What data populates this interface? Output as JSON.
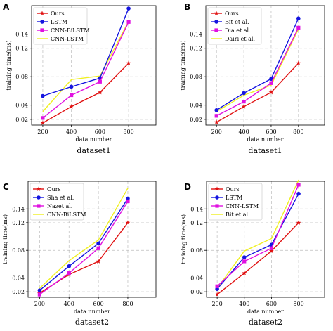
{
  "chart_data": [
    {
      "type": "line",
      "panel_label": "A",
      "xlabel": "data number",
      "ylabel": "training time(ms)",
      "caption": "dataset1",
      "x": [
        200,
        400,
        600,
        800
      ],
      "yticks": [
        0.02,
        0.04,
        0.08,
        0.12,
        0.14
      ],
      "ylim": [
        0.012,
        0.18
      ],
      "grid": true,
      "legend_position": "top-left",
      "series": [
        {
          "name": "Ours",
          "color": "#e01010",
          "marker": "star",
          "values": [
            0.015,
            0.038,
            0.058,
            0.099
          ]
        },
        {
          "name": "LSTM",
          "color": "#1515e0",
          "marker": "circle",
          "values": [
            0.053,
            0.066,
            0.078,
            0.176
          ]
        },
        {
          "name": "CNN-BiLSTM",
          "color": "#e010e0",
          "marker": "square",
          "values": [
            0.022,
            0.054,
            0.073,
            0.157
          ]
        },
        {
          "name": "CNN-LSTM",
          "color": "#f0f020",
          "marker": "none",
          "values": [
            0.031,
            0.076,
            0.081,
            0.158
          ]
        }
      ]
    },
    {
      "type": "line",
      "panel_label": "B",
      "xlabel": "data number",
      "ylabel": "training time(ms)",
      "caption": "dataset1",
      "x": [
        200,
        400,
        600,
        800
      ],
      "yticks": [
        0.02,
        0.04,
        0.08,
        0.12,
        0.14
      ],
      "ylim": [
        0.012,
        0.18
      ],
      "grid": true,
      "legend_position": "top-left",
      "series": [
        {
          "name": "Ours",
          "color": "#e01010",
          "marker": "star",
          "values": [
            0.016,
            0.038,
            0.058,
            0.099
          ]
        },
        {
          "name": "Bit et al.",
          "color": "#1515e0",
          "marker": "circle",
          "values": [
            0.033,
            0.057,
            0.077,
            0.162
          ]
        },
        {
          "name": "Dia et al.",
          "color": "#e010e0",
          "marker": "square",
          "values": [
            0.025,
            0.045,
            0.071,
            0.149
          ]
        },
        {
          "name": "Dairi et al.",
          "color": "#f0f020",
          "marker": "none",
          "values": [
            0.031,
            0.054,
            0.068,
            0.147
          ]
        }
      ]
    },
    {
      "type": "line",
      "panel_label": "C",
      "xlabel": "data number",
      "ylabel": "training time(ms)",
      "caption": "dataset2",
      "x": [
        200,
        400,
        600,
        800
      ],
      "yticks": [
        0.02,
        0.04,
        0.08,
        0.12,
        0.14
      ],
      "ylim": [
        0.012,
        0.18
      ],
      "grid": true,
      "legend_position": "top-left",
      "series": [
        {
          "name": "Ours",
          "color": "#e01010",
          "marker": "star",
          "values": [
            0.018,
            0.045,
            0.064,
            0.12
          ]
        },
        {
          "name": "Sha et al.",
          "color": "#1515e0",
          "marker": "circle",
          "values": [
            0.022,
            0.057,
            0.09,
            0.155
          ]
        },
        {
          "name": "Nazet al.",
          "color": "#e010e0",
          "marker": "square",
          "values": [
            0.016,
            0.047,
            0.083,
            0.151
          ]
        },
        {
          "name": "CNN-BiLSTM",
          "color": "#f0f020",
          "marker": "none",
          "values": [
            0.025,
            0.065,
            0.095,
            0.17
          ]
        }
      ]
    },
    {
      "type": "line",
      "panel_label": "D",
      "xlabel": "data number",
      "ylabel": "training time(ms)",
      "caption": "dataset2",
      "x": [
        200,
        400,
        600,
        800
      ],
      "yticks": [
        0.02,
        0.04,
        0.08,
        0.12,
        0.14
      ],
      "ylim": [
        0.012,
        0.18
      ],
      "grid": true,
      "legend_position": "top-left",
      "series": [
        {
          "name": "Ours",
          "color": "#e01010",
          "marker": "star",
          "values": [
            0.016,
            0.047,
            0.079,
            0.12
          ]
        },
        {
          "name": "LSTM",
          "color": "#1515e0",
          "marker": "circle",
          "values": [
            0.024,
            0.07,
            0.088,
            0.162
          ]
        },
        {
          "name": "CNN-LSTM",
          "color": "#e010e0",
          "marker": "square",
          "values": [
            0.028,
            0.064,
            0.083,
            0.175
          ]
        },
        {
          "name": "Bit et al.",
          "color": "#f0f020",
          "marker": "none",
          "values": [
            0.025,
            0.079,
            0.097,
            0.182
          ]
        }
      ]
    }
  ]
}
